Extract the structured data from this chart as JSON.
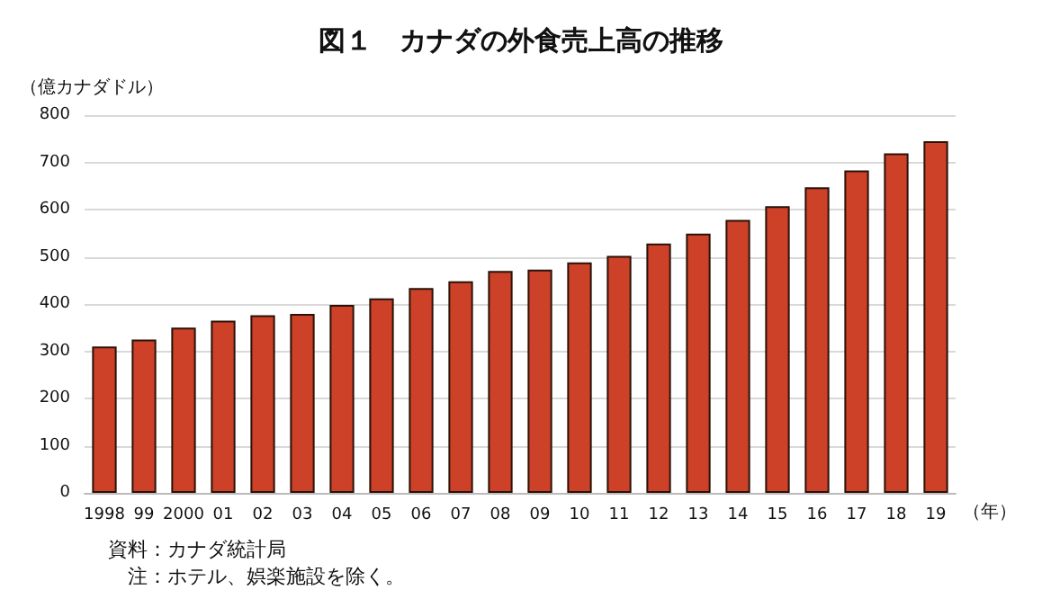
{
  "chart_data": {
    "type": "bar",
    "title": "図１　カナダの外食売上高の推移",
    "ylabel": "（億カナダドル）",
    "xlabel": "（年）",
    "categories": [
      "1998",
      "99",
      "2000",
      "01",
      "02",
      "03",
      "04",
      "05",
      "06",
      "07",
      "08",
      "09",
      "10",
      "11",
      "12",
      "13",
      "14",
      "15",
      "16",
      "17",
      "18",
      "19"
    ],
    "values": [
      310,
      325,
      350,
      365,
      376,
      379,
      398,
      412,
      434,
      448,
      470,
      473,
      488,
      502,
      528,
      549,
      578,
      607,
      647,
      683,
      719,
      745
    ],
    "color": "#cc4128",
    "ylim": [
      0,
      800
    ],
    "yticks": [
      0,
      100,
      200,
      300,
      400,
      500,
      600,
      700,
      800
    ],
    "grid": "y",
    "annotations": [
      "資料：カナダ統計局",
      "　注：ホテル、娯楽施設を除く。"
    ]
  }
}
